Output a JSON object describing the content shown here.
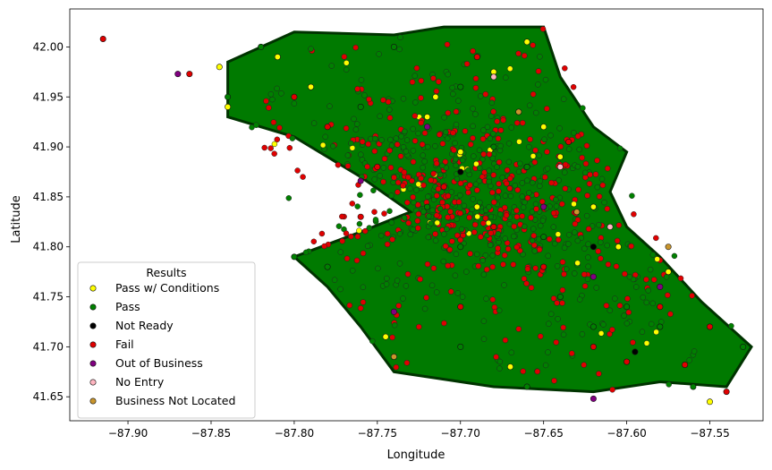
{
  "chart_data": {
    "type": "scatter",
    "title": "",
    "xlabel": "Longitude",
    "ylabel": "Latitude",
    "xlim": [
      -87.935,
      -87.518
    ],
    "ylim": [
      41.626,
      42.038
    ],
    "xticks": [
      -87.9,
      -87.85,
      -87.8,
      -87.75,
      -87.7,
      -87.65,
      -87.6,
      -87.55
    ],
    "xtick_labels": [
      "−87.90",
      "−87.85",
      "−87.80",
      "−87.75",
      "−87.70",
      "−87.65",
      "−87.60",
      "−87.55"
    ],
    "yticks": [
      41.65,
      41.7,
      41.75,
      41.8,
      41.85,
      41.9,
      41.95,
      42.0
    ],
    "ytick_labels": [
      "41.65",
      "41.70",
      "41.75",
      "41.80",
      "41.85",
      "41.90",
      "41.95",
      "42.00"
    ],
    "grid": false,
    "legend": {
      "title": "Results",
      "placement": "lower-left"
    },
    "series": [
      {
        "name": "Pass w/ Conditions",
        "color": "#ffff00",
        "points": [
          [
            -87.845,
            41.98
          ],
          [
            -87.84,
            41.94
          ],
          [
            -87.81,
            41.99
          ],
          [
            -87.79,
            41.96
          ],
          [
            -87.72,
            41.93
          ],
          [
            -87.69,
            41.84
          ],
          [
            -87.68,
            41.975
          ],
          [
            -87.66,
            42.005
          ],
          [
            -87.64,
            41.89
          ],
          [
            -87.62,
            41.84
          ],
          [
            -87.605,
            41.8
          ],
          [
            -87.575,
            41.775
          ],
          [
            -87.55,
            41.645
          ],
          [
            -87.67,
            41.68
          ],
          [
            -87.715,
            41.95
          ],
          [
            -87.745,
            41.71
          ],
          [
            -87.7,
            41.895
          ],
          [
            -87.65,
            41.92
          ]
        ]
      },
      {
        "name": "Pass",
        "color": "#008000",
        "points": [
          [
            -87.8,
            41.79
          ],
          [
            -87.78,
            41.78
          ],
          [
            -87.72,
            41.84
          ],
          [
            -87.7,
            41.96
          ],
          [
            -87.68,
            41.9
          ],
          [
            -87.66,
            41.88
          ],
          [
            -87.64,
            41.75
          ],
          [
            -87.62,
            41.72
          ],
          [
            -87.6,
            41.74
          ],
          [
            -87.58,
            41.72
          ],
          [
            -87.56,
            41.66
          ],
          [
            -87.53,
            41.7
          ],
          [
            -87.76,
            41.94
          ],
          [
            -87.84,
            41.95
          ],
          [
            -87.82,
            42.0
          ],
          [
            -87.74,
            42.0
          ],
          [
            -87.7,
            41.7
          ],
          [
            -87.66,
            41.66
          ],
          [
            -87.7,
            41.8
          ],
          [
            -87.65,
            41.81
          ]
        ]
      },
      {
        "name": "Not Ready",
        "color": "#000000",
        "points": [
          [
            -87.595,
            41.695
          ],
          [
            -87.7,
            41.875
          ],
          [
            -87.62,
            41.8
          ]
        ]
      },
      {
        "name": "Fail",
        "color": "#e00000",
        "points": [
          [
            -87.915,
            42.008
          ],
          [
            -87.863,
            41.973
          ],
          [
            -87.78,
            41.92
          ],
          [
            -87.75,
            41.88
          ],
          [
            -87.71,
            41.86
          ],
          [
            -87.68,
            41.82
          ],
          [
            -87.65,
            41.78
          ],
          [
            -87.62,
            41.7
          ],
          [
            -87.58,
            41.74
          ],
          [
            -87.55,
            41.72
          ],
          [
            -87.54,
            41.655
          ],
          [
            -87.6,
            41.685
          ],
          [
            -87.635,
            41.905
          ],
          [
            -87.69,
            41.99
          ],
          [
            -87.76,
            41.83
          ],
          [
            -87.8,
            41.95
          ],
          [
            -87.565,
            41.682
          ],
          [
            -87.7,
            41.74
          ]
        ]
      },
      {
        "name": "Out of Business",
        "color": "#800080",
        "points": [
          [
            -87.87,
            41.973
          ],
          [
            -87.76,
            41.866
          ],
          [
            -87.72,
            41.92
          ],
          [
            -87.65,
            41.84
          ],
          [
            -87.62,
            41.648
          ],
          [
            -87.62,
            41.77
          ],
          [
            -87.58,
            41.76
          ],
          [
            -87.74,
            41.735
          ]
        ]
      },
      {
        "name": "No Entry",
        "color": "#ffb6c1",
        "points": [
          [
            -87.68,
            41.97
          ],
          [
            -87.64,
            41.88
          ],
          [
            -87.61,
            41.82
          ]
        ]
      },
      {
        "name": "Business Not Located",
        "color": "#c9952c",
        "points": [
          [
            -87.74,
            41.69
          ],
          [
            -87.63,
            41.835
          ],
          [
            -87.665,
            41.935
          ],
          [
            -87.575,
            41.8
          ]
        ]
      }
    ]
  }
}
